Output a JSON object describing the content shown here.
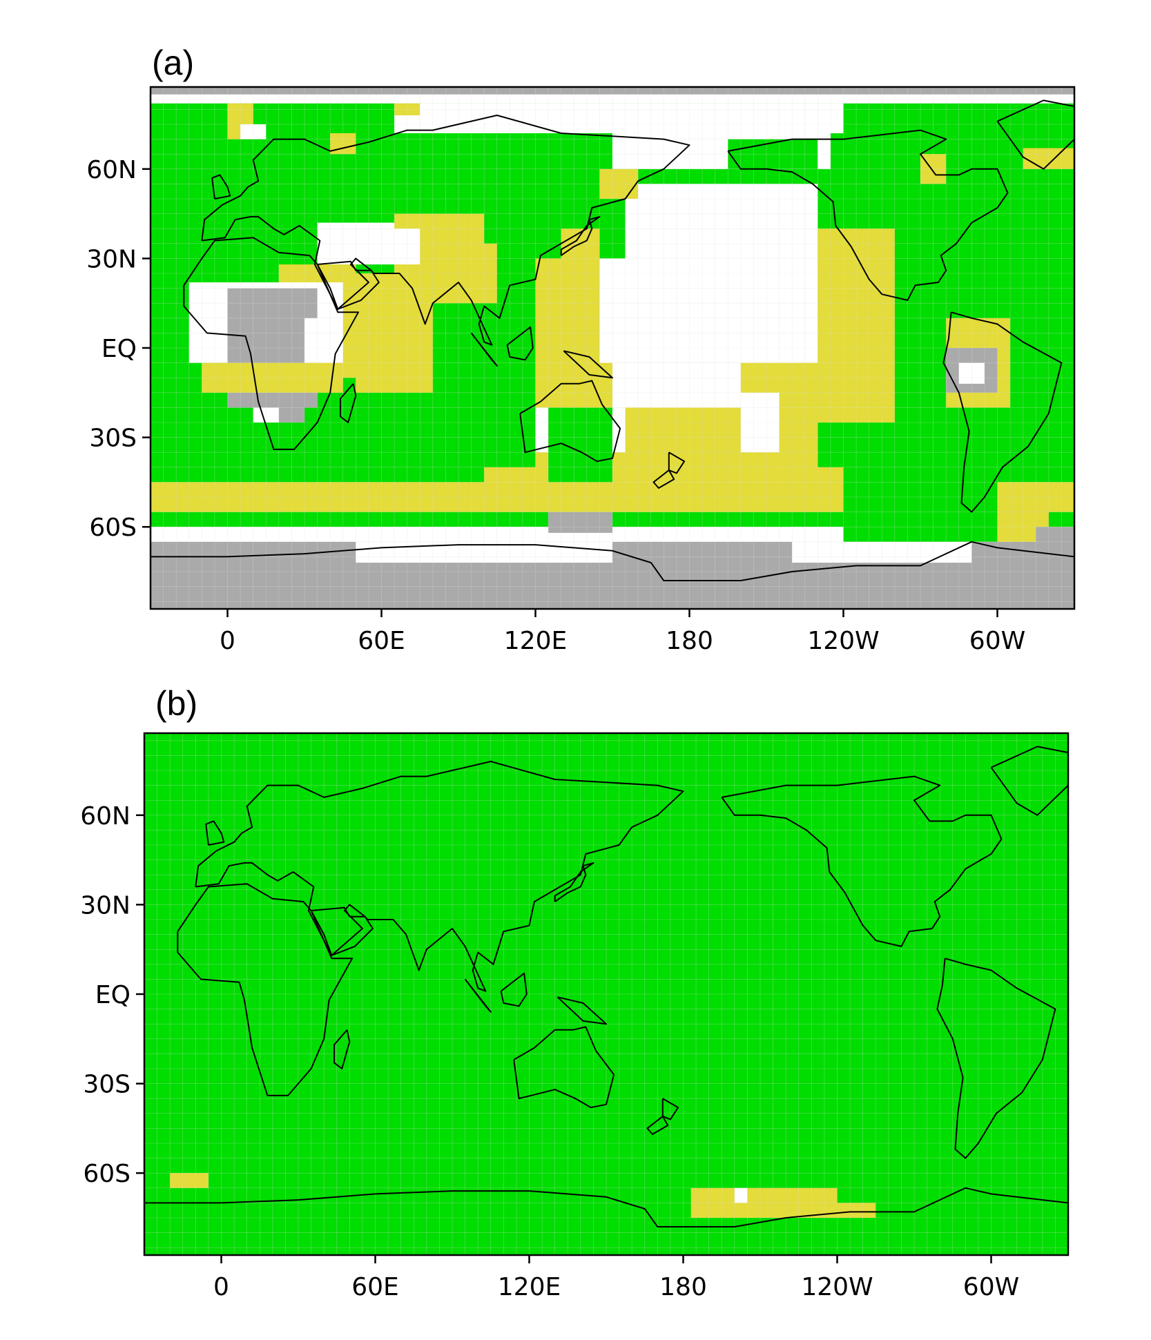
{
  "colors": {
    "green": "#00dd00",
    "yellow": "#e3dc3a",
    "white": "#ffffff",
    "gray": "#aaaaaa",
    "coast": "#000000",
    "grid": "#dddddd"
  },
  "icons": [
    "coastline"
  ],
  "panels": [
    {
      "id": "a",
      "label": "(a)",
      "x_ticks": [
        "0",
        "60E",
        "120E",
        "180",
        "120W",
        "60W"
      ],
      "x_tick_lon": [
        0,
        60,
        120,
        180,
        240,
        300
      ],
      "y_ticks": [
        "60N",
        "30N",
        "EQ",
        "30S",
        "60S"
      ],
      "y_tick_lat": [
        60,
        30,
        0,
        -30,
        -60
      ],
      "lon_range": [
        -30,
        330
      ],
      "lat_range": [
        -87.5,
        87.5
      ],
      "base_category": "green",
      "regions": [
        {
          "category": "gray",
          "lon": [
            -30,
            330
          ],
          "lat": [
            -87.5,
            -60
          ]
        },
        {
          "category": "white",
          "lon": [
            -30,
            330
          ],
          "lat": [
            -65,
            -50
          ]
        },
        {
          "category": "yellow",
          "lon": [
            -30,
            330
          ],
          "lat": [
            -55,
            -45
          ]
        },
        {
          "category": "green",
          "lon": [
            -30,
            330
          ],
          "lat": [
            -60,
            -55
          ]
        },
        {
          "category": "white",
          "lon": [
            50,
            150
          ],
          "lat": [
            -72,
            -60
          ]
        },
        {
          "category": "white",
          "lon": [
            220,
            290
          ],
          "lat": [
            -72,
            -60
          ]
        },
        {
          "category": "gray",
          "lon": [
            125,
            150
          ],
          "lat": [
            -62,
            -55
          ]
        },
        {
          "category": "yellow",
          "lon": [
            -25,
            20
          ],
          "lat": [
            -55,
            -50
          ]
        },
        {
          "category": "yellow",
          "lon": [
            100,
            240
          ],
          "lat": [
            -55,
            -40
          ]
        },
        {
          "category": "yellow",
          "lon": [
            290,
            320
          ],
          "lat": [
            -60,
            -45
          ]
        },
        {
          "category": "green",
          "lon": [
            240,
            300
          ],
          "lat": [
            -65,
            -17
          ]
        },
        {
          "category": "gray",
          "lon": [
            -30,
            330
          ],
          "lat": [
            82,
            87.5
          ]
        },
        {
          "category": "white",
          "lon": [
            65,
            240
          ],
          "lat": [
            72,
            82
          ]
        },
        {
          "category": "white",
          "lon": [
            -30,
            330
          ],
          "lat": [
            82,
            85
          ]
        },
        {
          "category": "white",
          "lon": [
            150,
            235
          ],
          "lat": [
            60,
            72
          ]
        },
        {
          "category": "green",
          "lon": [
            195,
            230
          ],
          "lat": [
            60,
            70
          ]
        },
        {
          "category": "yellow",
          "lon": [
            0,
            10
          ],
          "lat": [
            70,
            82
          ]
        },
        {
          "category": "yellow",
          "lon": [
            65,
            75
          ],
          "lat": [
            78,
            82
          ]
        },
        {
          "category": "yellow",
          "lon": [
            40,
            50
          ],
          "lat": [
            65,
            72
          ]
        },
        {
          "category": "white",
          "lon": [
            5,
            15
          ],
          "lat": [
            70,
            75
          ]
        },
        {
          "category": "yellow",
          "lon": [
            270,
            280
          ],
          "lat": [
            55,
            65
          ]
        },
        {
          "category": "yellow",
          "lon": [
            310,
            330
          ],
          "lat": [
            60,
            67
          ]
        },
        {
          "category": "white",
          "lon": [
            35,
            95
          ],
          "lat": [
            28,
            42
          ]
        },
        {
          "category": "yellow",
          "lon": [
            65,
            100
          ],
          "lat": [
            25,
            45
          ]
        },
        {
          "category": "white",
          "lon": [
            40,
            75
          ],
          "lat": [
            28,
            40
          ]
        },
        {
          "category": "yellow",
          "lon": [
            20,
            50
          ],
          "lat": [
            -10,
            28
          ]
        },
        {
          "category": "white",
          "lon": [
            -15,
            45
          ],
          "lat": [
            -5,
            22
          ]
        },
        {
          "category": "gray",
          "lon": [
            0,
            35
          ],
          "lat": [
            -20,
            20
          ]
        },
        {
          "category": "gray",
          "lon": [
            10,
            30
          ],
          "lat": [
            -25,
            0
          ]
        },
        {
          "category": "white",
          "lon": [
            30,
            45
          ],
          "lat": [
            -12,
            10
          ]
        },
        {
          "category": "yellow",
          "lon": [
            -10,
            45
          ],
          "lat": [
            -15,
            -5
          ]
        },
        {
          "category": "white",
          "lon": [
            10,
            20
          ],
          "lat": [
            -25,
            -20
          ]
        },
        {
          "category": "yellow",
          "lon": [
            50,
            80
          ],
          "lat": [
            -15,
            25
          ]
        },
        {
          "category": "yellow",
          "lon": [
            80,
            105
          ],
          "lat": [
            15,
            35
          ]
        },
        {
          "category": "yellow",
          "lon": [
            120,
            230
          ],
          "lat": [
            -45,
            30
          ]
        },
        {
          "category": "white",
          "lon": [
            145,
            230
          ],
          "lat": [
            -5,
            55
          ]
        },
        {
          "category": "yellow",
          "lon": [
            230,
            260
          ],
          "lat": [
            -25,
            40
          ]
        },
        {
          "category": "white",
          "lon": [
            120,
            155
          ],
          "lat": [
            -35,
            -20
          ]
        },
        {
          "category": "green",
          "lon": [
            125,
            150
          ],
          "lat": [
            -45,
            -20
          ]
        },
        {
          "category": "white",
          "lon": [
            200,
            215
          ],
          "lat": [
            -35,
            -15
          ]
        },
        {
          "category": "white",
          "lon": [
            150,
            200
          ],
          "lat": [
            -20,
            -5
          ]
        },
        {
          "category": "yellow",
          "lon": [
            280,
            305
          ],
          "lat": [
            -20,
            10
          ]
        },
        {
          "category": "gray",
          "lon": [
            280,
            300
          ],
          "lat": [
            -15,
            0
          ]
        },
        {
          "category": "white",
          "lon": [
            285,
            295
          ],
          "lat": [
            -12,
            -5
          ]
        },
        {
          "category": "gray",
          "lon": [
            305,
            330
          ],
          "lat": [
            -70,
            -60
          ]
        },
        {
          "category": "yellow",
          "lon": [
            300,
            315
          ],
          "lat": [
            -65,
            -55
          ]
        },
        {
          "category": "green",
          "lon": [
            130,
            155
          ],
          "lat": [
            30,
            55
          ]
        },
        {
          "category": "yellow",
          "lon": [
            145,
            160
          ],
          "lat": [
            50,
            60
          ]
        },
        {
          "category": "yellow",
          "lon": [
            130,
            145
          ],
          "lat": [
            20,
            40
          ]
        }
      ]
    },
    {
      "id": "b",
      "label": "(b)",
      "x_ticks": [
        "0",
        "60E",
        "120E",
        "180",
        "120W",
        "60W"
      ],
      "x_tick_lon": [
        0,
        60,
        120,
        180,
        240,
        300
      ],
      "y_ticks": [
        "60N",
        "30N",
        "EQ",
        "30S",
        "60S"
      ],
      "y_tick_lat": [
        60,
        30,
        0,
        -30,
        -60
      ],
      "lon_range": [
        -30,
        330
      ],
      "lat_range": [
        -87.5,
        87.5
      ],
      "base_category": "green",
      "regions": [
        {
          "category": "yellow",
          "lon": [
            -20,
            -5
          ],
          "lat": [
            -65,
            -60
          ]
        },
        {
          "category": "yellow",
          "lon": [
            183,
            240
          ],
          "lat": [
            -75,
            -65
          ]
        },
        {
          "category": "yellow",
          "lon": [
            240,
            255
          ],
          "lat": [
            -75,
            -70
          ]
        },
        {
          "category": "white",
          "lon": [
            200,
            205
          ],
          "lat": [
            -70,
            -65
          ]
        }
      ]
    }
  ]
}
